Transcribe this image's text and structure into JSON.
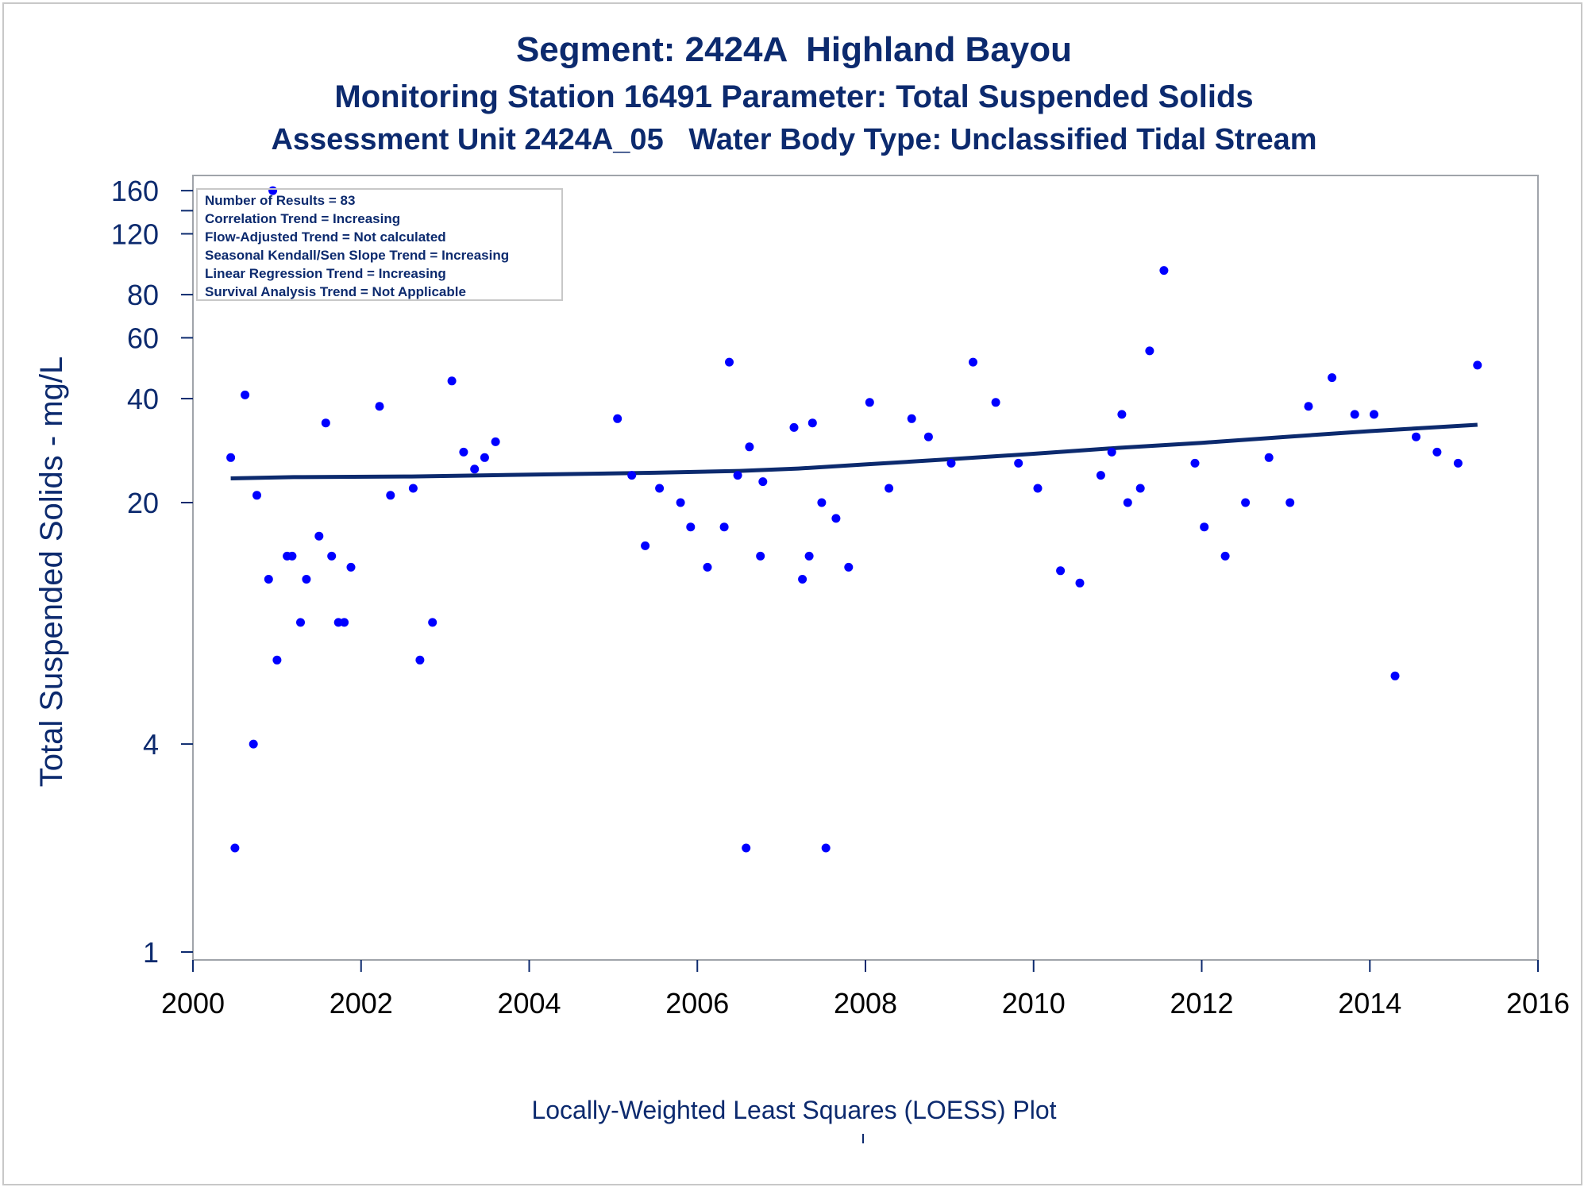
{
  "titles": {
    "line1": "Segment: 2424A  Highland Bayou",
    "line2": "Monitoring Station 16491 Parameter: Total Suspended Solids",
    "line3": "Assessment Unit 2424A_05   Water Body Type: Unclassified Tidal Stream"
  },
  "footer": "Locally-Weighted Least Squares (LOESS) Plot",
  "colors": {
    "text": "#0c2a6e",
    "points": "#0000ff",
    "trend": "#0c2a6e",
    "frame": "#a0a4aa"
  },
  "chart_data": {
    "type": "scatter",
    "ylabel": "Total Suspended Solids - mg/L",
    "xlabel": "",
    "xlim": [
      2000,
      2016
    ],
    "ylim": [
      1,
      175
    ],
    "y_scale": "log",
    "x_ticks": [
      "2000",
      "2002",
      "2004",
      "2006",
      "2008",
      "2010",
      "2012",
      "2014",
      "2016"
    ],
    "y_ticks": [
      "1",
      "4",
      "20",
      "40",
      "60",
      "80",
      "120",
      "160"
    ],
    "legend_box": [
      "Number of Results = 83",
      "Correlation Trend = Increasing",
      "Flow-Adjusted Trend = Not calculated",
      "Seasonal Kendall/Sen Slope Trend = Increasing",
      "Linear Regression Trend = Increasing",
      "Survival Analysis Trend = Not Applicable"
    ],
    "legend_position": "top-left",
    "points": [
      {
        "x": 2000.45,
        "y": 27
      },
      {
        "x": 2000.5,
        "y": 2
      },
      {
        "x": 2000.62,
        "y": 41
      },
      {
        "x": 2000.72,
        "y": 4
      },
      {
        "x": 2000.76,
        "y": 21
      },
      {
        "x": 2000.9,
        "y": 12
      },
      {
        "x": 2000.95,
        "y": 160
      },
      {
        "x": 2001.0,
        "y": 7
      },
      {
        "x": 2001.12,
        "y": 14
      },
      {
        "x": 2001.18,
        "y": 14
      },
      {
        "x": 2001.28,
        "y": 9
      },
      {
        "x": 2001.35,
        "y": 12
      },
      {
        "x": 2001.5,
        "y": 16
      },
      {
        "x": 2001.58,
        "y": 34
      },
      {
        "x": 2001.65,
        "y": 14
      },
      {
        "x": 2001.73,
        "y": 9
      },
      {
        "x": 2001.8,
        "y": 9
      },
      {
        "x": 2001.88,
        "y": 13
      },
      {
        "x": 2002.22,
        "y": 38
      },
      {
        "x": 2002.35,
        "y": 21
      },
      {
        "x": 2002.62,
        "y": 22
      },
      {
        "x": 2002.7,
        "y": 7
      },
      {
        "x": 2002.85,
        "y": 9
      },
      {
        "x": 2003.08,
        "y": 45
      },
      {
        "x": 2003.22,
        "y": 28
      },
      {
        "x": 2003.35,
        "y": 25
      },
      {
        "x": 2003.47,
        "y": 27
      },
      {
        "x": 2003.6,
        "y": 30
      },
      {
        "x": 2005.05,
        "y": 35
      },
      {
        "x": 2005.22,
        "y": 24
      },
      {
        "x": 2005.38,
        "y": 15
      },
      {
        "x": 2005.55,
        "y": 22
      },
      {
        "x": 2005.8,
        "y": 20
      },
      {
        "x": 2005.92,
        "y": 17
      },
      {
        "x": 2006.12,
        "y": 13
      },
      {
        "x": 2006.32,
        "y": 17
      },
      {
        "x": 2006.38,
        "y": 51
      },
      {
        "x": 2006.48,
        "y": 24
      },
      {
        "x": 2006.58,
        "y": 2
      },
      {
        "x": 2006.62,
        "y": 29
      },
      {
        "x": 2006.75,
        "y": 14
      },
      {
        "x": 2006.78,
        "y": 23
      },
      {
        "x": 2007.15,
        "y": 33
      },
      {
        "x": 2007.25,
        "y": 12
      },
      {
        "x": 2007.33,
        "y": 14
      },
      {
        "x": 2007.37,
        "y": 34
      },
      {
        "x": 2007.48,
        "y": 20
      },
      {
        "x": 2007.53,
        "y": 2
      },
      {
        "x": 2007.65,
        "y": 18
      },
      {
        "x": 2007.8,
        "y": 13
      },
      {
        "x": 2008.05,
        "y": 39
      },
      {
        "x": 2008.28,
        "y": 22
      },
      {
        "x": 2008.55,
        "y": 35
      },
      {
        "x": 2008.75,
        "y": 31
      },
      {
        "x": 2009.02,
        "y": 26
      },
      {
        "x": 2009.28,
        "y": 51
      },
      {
        "x": 2009.55,
        "y": 39
      },
      {
        "x": 2009.82,
        "y": 26
      },
      {
        "x": 2010.05,
        "y": 22
      },
      {
        "x": 2010.32,
        "y": 12.7
      },
      {
        "x": 2010.55,
        "y": 11.7
      },
      {
        "x": 2010.8,
        "y": 24
      },
      {
        "x": 2010.93,
        "y": 28
      },
      {
        "x": 2011.05,
        "y": 36
      },
      {
        "x": 2011.12,
        "y": 20
      },
      {
        "x": 2011.27,
        "y": 22
      },
      {
        "x": 2011.38,
        "y": 55
      },
      {
        "x": 2011.55,
        "y": 94
      },
      {
        "x": 2011.92,
        "y": 26
      },
      {
        "x": 2012.03,
        "y": 17
      },
      {
        "x": 2012.28,
        "y": 14
      },
      {
        "x": 2012.52,
        "y": 20
      },
      {
        "x": 2012.8,
        "y": 27
      },
      {
        "x": 2013.05,
        "y": 20
      },
      {
        "x": 2013.27,
        "y": 38
      },
      {
        "x": 2013.55,
        "y": 46
      },
      {
        "x": 2013.82,
        "y": 36
      },
      {
        "x": 2014.05,
        "y": 36
      },
      {
        "x": 2014.3,
        "y": 6.3
      },
      {
        "x": 2014.55,
        "y": 31
      },
      {
        "x": 2014.8,
        "y": 28
      },
      {
        "x": 2015.05,
        "y": 26
      },
      {
        "x": 2015.28,
        "y": 50
      }
    ],
    "trend_line": [
      {
        "x": 2000.45,
        "y": 23.5
      },
      {
        "x": 2001.2,
        "y": 23.7
      },
      {
        "x": 2002.6,
        "y": 23.8
      },
      {
        "x": 2003.5,
        "y": 24.0
      },
      {
        "x": 2004.5,
        "y": 24.2
      },
      {
        "x": 2005.5,
        "y": 24.4
      },
      {
        "x": 2006.5,
        "y": 24.7
      },
      {
        "x": 2007.2,
        "y": 25.1
      },
      {
        "x": 2008.0,
        "y": 25.8
      },
      {
        "x": 2009.0,
        "y": 26.7
      },
      {
        "x": 2010.0,
        "y": 27.7
      },
      {
        "x": 2011.0,
        "y": 28.8
      },
      {
        "x": 2012.0,
        "y": 29.8
      },
      {
        "x": 2013.0,
        "y": 31.0
      },
      {
        "x": 2014.0,
        "y": 32.2
      },
      {
        "x": 2015.28,
        "y": 33.6
      }
    ]
  }
}
